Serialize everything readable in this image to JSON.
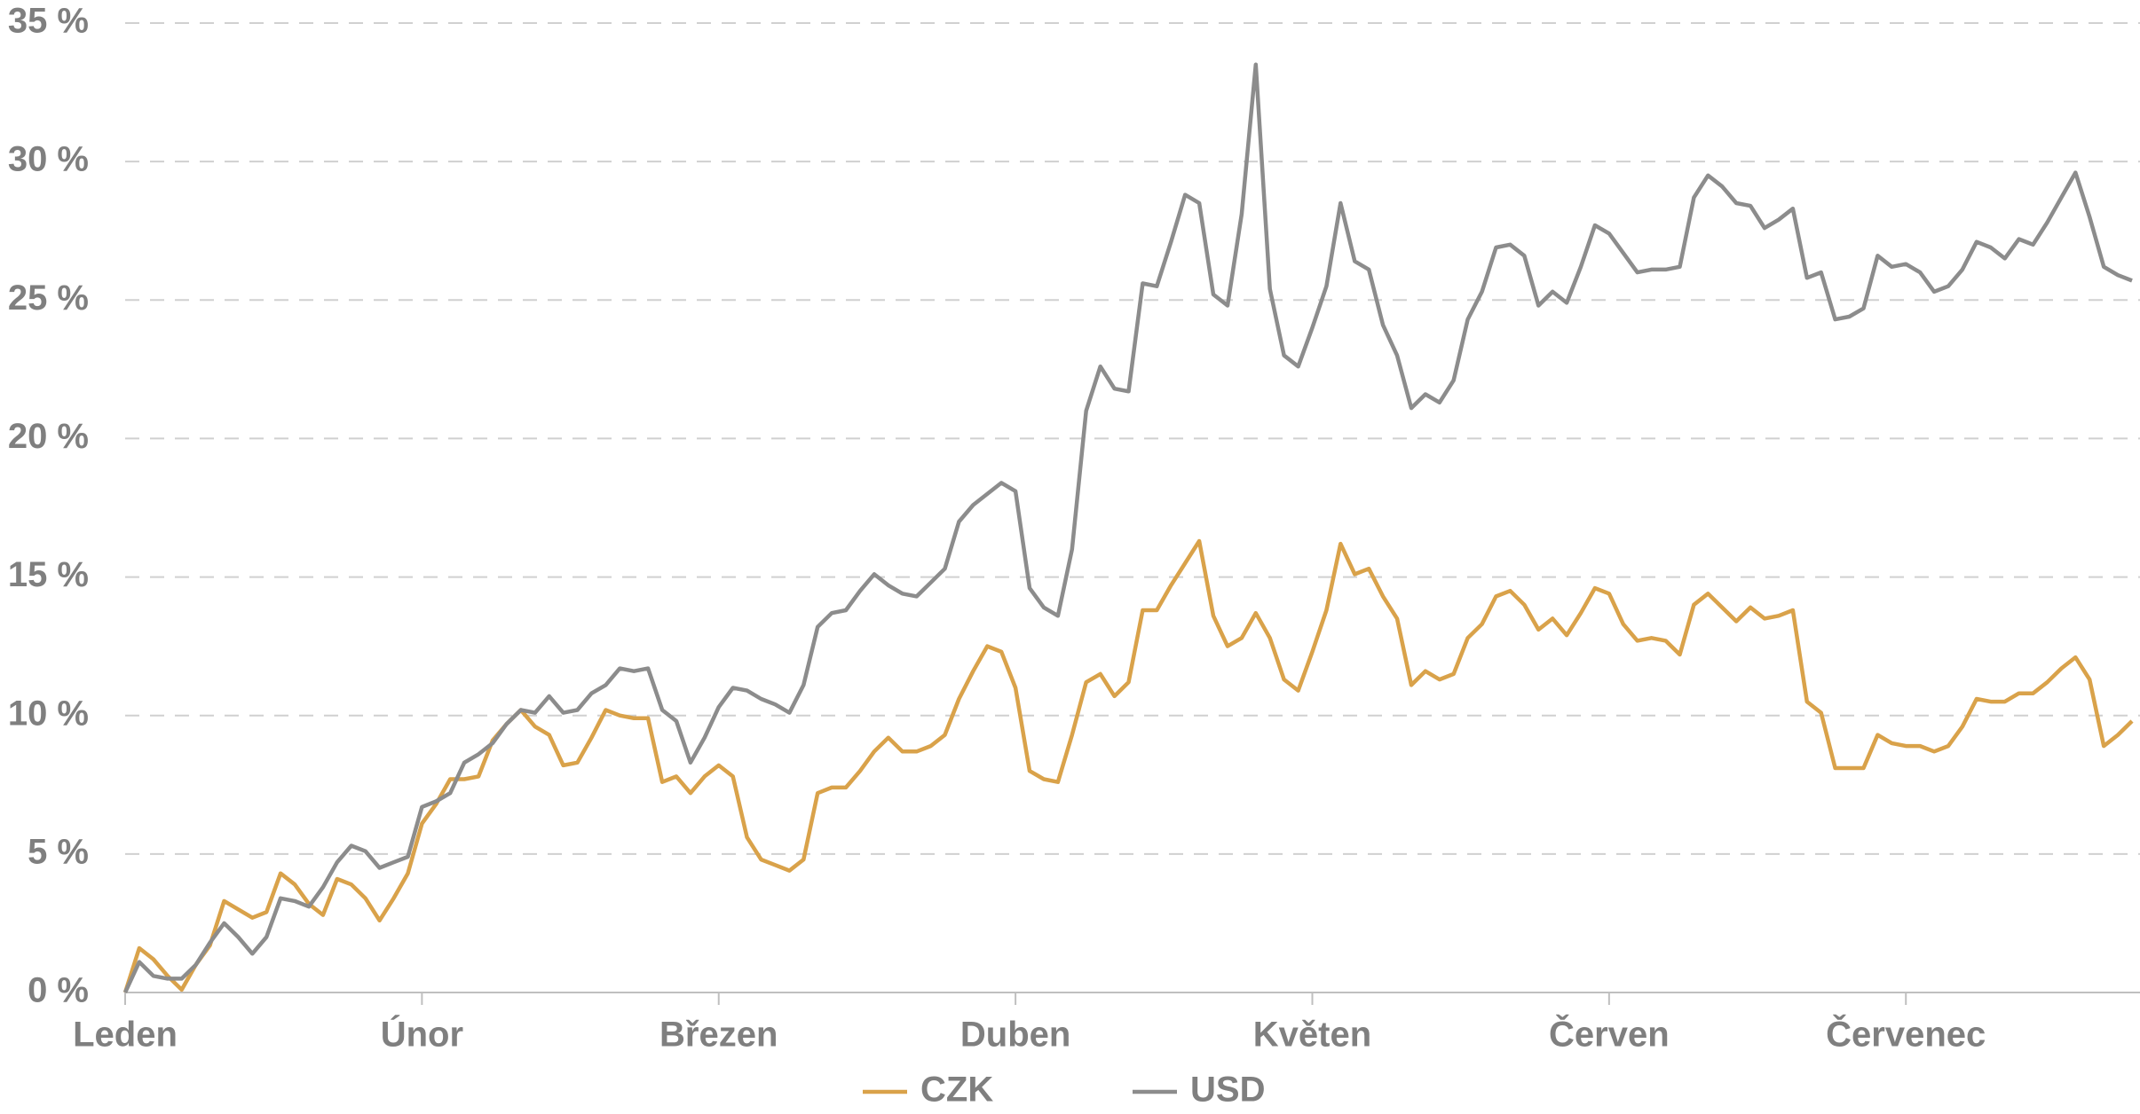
{
  "chart_data": {
    "type": "line",
    "categories": [
      "Leden",
      null,
      null,
      null,
      null,
      null,
      null,
      null,
      null,
      null,
      null,
      null,
      null,
      null,
      null,
      null,
      null,
      null,
      null,
      null,
      null,
      "Únor",
      null,
      null,
      null,
      null,
      null,
      null,
      null,
      null,
      null,
      null,
      null,
      null,
      null,
      null,
      null,
      null,
      null,
      null,
      null,
      null,
      "Březen",
      null,
      null,
      null,
      null,
      null,
      null,
      null,
      null,
      null,
      null,
      null,
      null,
      null,
      null,
      null,
      null,
      null,
      null,
      null,
      null,
      "Duben",
      null,
      null,
      null,
      null,
      null,
      null,
      null,
      null,
      null,
      null,
      null,
      null,
      null,
      null,
      null,
      null,
      null,
      null,
      null,
      null,
      "Květen",
      null,
      null,
      null,
      null,
      null,
      null,
      null,
      null,
      null,
      null,
      null,
      null,
      null,
      null,
      null,
      null,
      null,
      null,
      null,
      null,
      "Červen",
      null,
      null,
      null,
      null,
      null,
      null,
      null,
      null,
      null,
      null,
      null,
      null,
      null,
      null,
      null,
      null,
      null,
      null,
      null,
      null,
      "Červenec",
      null,
      null,
      null,
      null,
      null,
      null,
      null,
      null,
      null,
      null,
      null,
      null,
      null,
      null,
      null,
      null
    ],
    "series": [
      {
        "name": "CZK",
        "color": "#d9a24a",
        "values": [
          0,
          1.6,
          1.2,
          0.6,
          0.1,
          1.0,
          1.7,
          3.3,
          3.0,
          2.7,
          2.9,
          4.3,
          3.9,
          3.2,
          2.8,
          4.1,
          3.9,
          3.4,
          2.6,
          3.4,
          4.3,
          6.1,
          6.8,
          7.7,
          7.7,
          7.8,
          9.1,
          9.7,
          10.2,
          9.6,
          9.3,
          8.2,
          8.3,
          9.2,
          10.2,
          10.0,
          9.9,
          9.9,
          7.6,
          7.8,
          7.2,
          7.8,
          8.2,
          7.8,
          5.6,
          4.8,
          4.6,
          4.4,
          4.8,
          7.2,
          7.4,
          7.4,
          8.0,
          8.7,
          9.2,
          8.7,
          8.7,
          8.9,
          9.3,
          10.6,
          11.6,
          12.5,
          12.3,
          11.0,
          8.0,
          7.7,
          7.6,
          9.3,
          11.2,
          11.5,
          10.7,
          11.2,
          13.8,
          13.8,
          14.7,
          15.5,
          16.3,
          13.6,
          12.5,
          12.8,
          13.7,
          12.8,
          11.3,
          10.9,
          12.3,
          13.8,
          16.2,
          15.1,
          15.3,
          14.3,
          13.5,
          11.1,
          11.6,
          11.3,
          11.5,
          12.8,
          13.3,
          14.3,
          14.5,
          14.0,
          13.1,
          13.5,
          12.9,
          13.7,
          14.6,
          14.4,
          13.3,
          12.7,
          12.8,
          12.7,
          12.2,
          14.0,
          14.4,
          13.9,
          13.4,
          13.9,
          13.5,
          13.6,
          13.8,
          10.5,
          10.1,
          8.1,
          8.1,
          8.1,
          9.3,
          9.0,
          8.9,
          8.9,
          8.7,
          8.9,
          9.6,
          10.6,
          10.5,
          10.5,
          10.8,
          10.8,
          11.2,
          11.7,
          12.1,
          11.3,
          8.9,
          9.3,
          9.8
        ]
      },
      {
        "name": "USD",
        "color": "#8c8c8c",
        "values": [
          0,
          1.1,
          0.6,
          0.5,
          0.5,
          1.0,
          1.8,
          2.5,
          2.0,
          1.4,
          2.0,
          3.4,
          3.3,
          3.1,
          3.8,
          4.7,
          5.3,
          5.1,
          4.5,
          4.7,
          4.9,
          6.7,
          6.9,
          7.2,
          8.3,
          8.6,
          9.0,
          9.7,
          10.2,
          10.1,
          10.7,
          10.1,
          10.2,
          10.8,
          11.1,
          11.7,
          11.6,
          11.7,
          10.2,
          9.8,
          8.3,
          9.2,
          10.3,
          11.0,
          10.9,
          10.6,
          10.4,
          10.1,
          11.1,
          13.2,
          13.7,
          13.8,
          14.5,
          15.1,
          14.7,
          14.4,
          14.3,
          14.8,
          15.3,
          17.0,
          17.6,
          18.0,
          18.4,
          18.1,
          14.6,
          13.9,
          13.6,
          16.0,
          21.0,
          22.6,
          21.8,
          21.7,
          25.6,
          25.5,
          27.1,
          28.8,
          28.5,
          25.2,
          24.8,
          28.1,
          33.5,
          25.4,
          23.0,
          22.6,
          24.0,
          25.5,
          28.5,
          26.4,
          26.1,
          24.1,
          23.0,
          21.1,
          21.6,
          21.3,
          22.1,
          24.3,
          25.3,
          26.9,
          27.0,
          26.6,
          24.8,
          25.3,
          24.9,
          26.2,
          27.7,
          27.4,
          26.7,
          26.0,
          26.1,
          26.1,
          26.2,
          28.7,
          29.5,
          29.1,
          28.5,
          28.4,
          27.6,
          27.9,
          28.3,
          25.8,
          26.0,
          24.3,
          24.4,
          24.7,
          26.6,
          26.2,
          26.3,
          26.0,
          25.3,
          25.5,
          26.1,
          27.1,
          26.9,
          26.5,
          27.2,
          27.0,
          27.8,
          28.7,
          29.6,
          28.0,
          26.2,
          25.9,
          25.7
        ]
      }
    ],
    "ylim": [
      0,
      35
    ],
    "yticks": [
      {
        "value": 0,
        "label": "0 %"
      },
      {
        "value": 5,
        "label": "5 %"
      },
      {
        "value": 10,
        "label": "10 %"
      },
      {
        "value": 15,
        "label": "15 %"
      },
      {
        "value": 20,
        "label": "20 %"
      },
      {
        "value": 25,
        "label": "25 %"
      },
      {
        "value": 30,
        "label": "30 %"
      },
      {
        "value": 35,
        "label": "35 %"
      }
    ],
    "grid": true,
    "legend": "bottom"
  }
}
